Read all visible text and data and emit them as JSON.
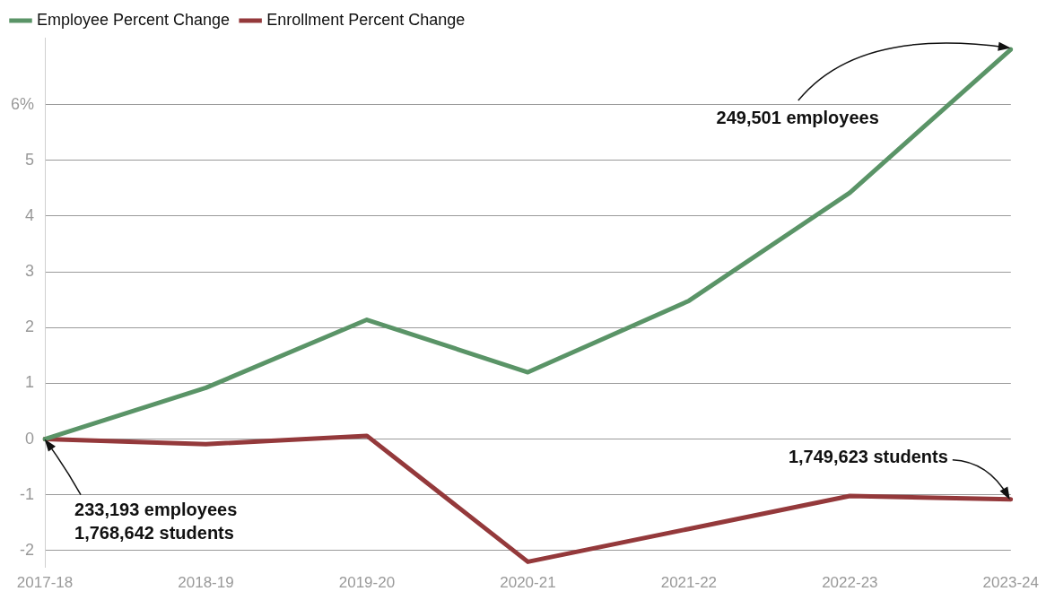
{
  "chart_data": {
    "type": "line",
    "categories": [
      "2017-18",
      "2018-19",
      "2019-20",
      "2020-21",
      "2021-22",
      "2022-23",
      "2023-24"
    ],
    "series": [
      {
        "name": "Employee Percent Change",
        "color": "#5a9467",
        "values": [
          0,
          0.92,
          2.14,
          1.2,
          2.48,
          4.42,
          6.99
        ]
      },
      {
        "name": "Enrollment Percent Change",
        "color": "#94393b",
        "values": [
          0,
          -0.09,
          0.06,
          -2.2,
          -1.61,
          -1.02,
          -1.08
        ]
      }
    ],
    "ylim": [
      -2.3,
      7.2
    ],
    "yticks": [
      -2,
      -1,
      0,
      1,
      2,
      3,
      4,
      5,
      {
        "value": 6,
        "label": "6%"
      }
    ],
    "grid": "y",
    "legend": "top left",
    "marker": "none",
    "line_style": "solid",
    "annotations": [
      {
        "text": "249,501 employees",
        "x": "2023-24",
        "y": 6.99
      },
      {
        "text": "1,749,623 students",
        "x": "2023-24",
        "y": -1.08
      },
      {
        "text": "233,193 employees",
        "x": "2017-18",
        "y": 0
      },
      "1,768,642 students"
    ]
  }
}
